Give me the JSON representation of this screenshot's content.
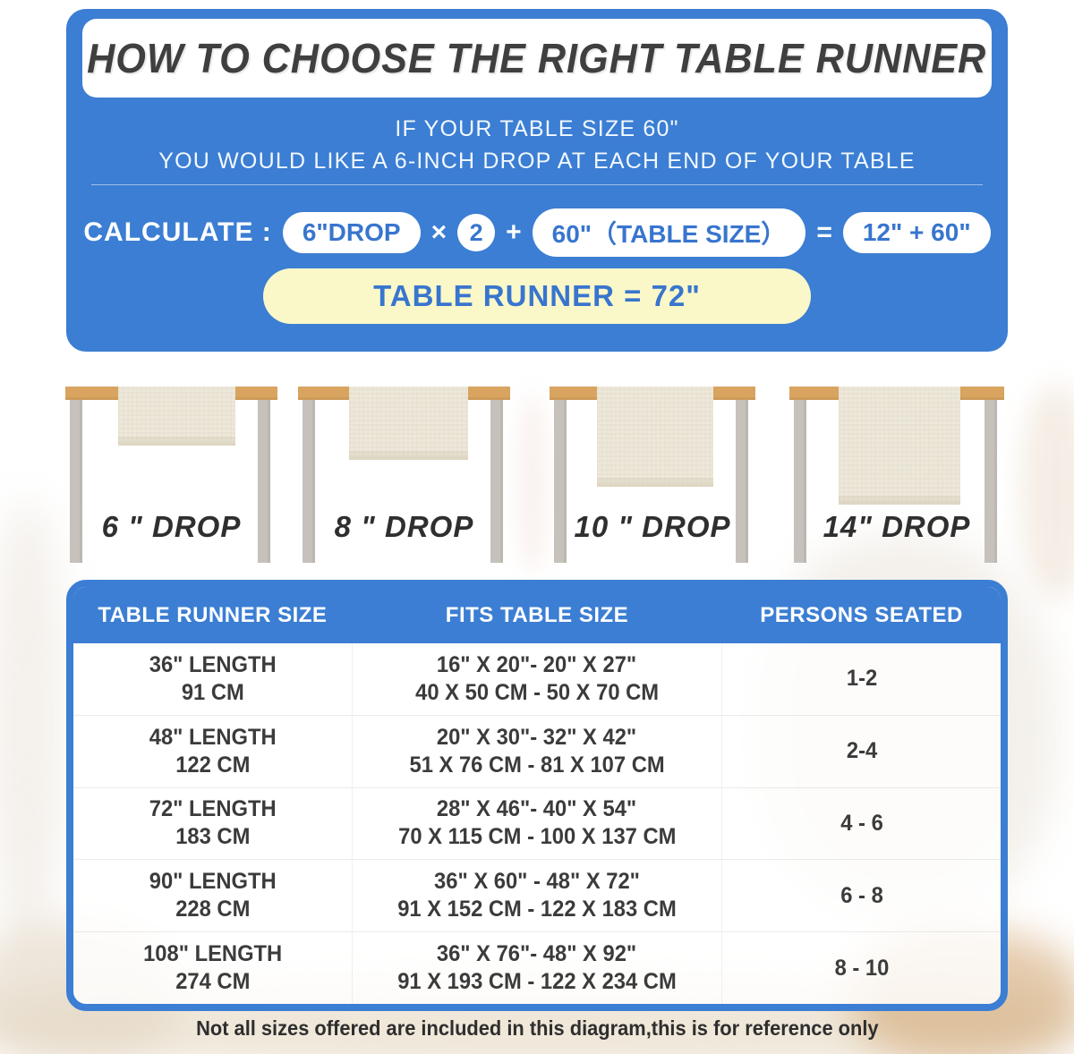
{
  "colors": {
    "panel_blue": "#3B7ED3",
    "accent_blue_text": "#3875CE",
    "banner_yellow": "#FAF8C9",
    "wood_tan": "#D9A45F",
    "leg_gray": "#C6C1BB",
    "runner_cream": "#EDE8DA",
    "dark_text": "#3B3B3B"
  },
  "header": {
    "title": "HOW TO CHOOSE THE RIGHT TABLE RUNNER",
    "subtitle_line1": "IF YOUR TABLE SIZE 60\"",
    "subtitle_line2": "YOU WOULD LIKE A 6-INCH DROP AT EACH END OF YOUR TABLE",
    "calculate_label": "CALCULATE :",
    "formula": {
      "drop_pill": "6\"DROP",
      "times_sign": "×",
      "multiplier": "2",
      "plus_sign": "+",
      "table_size_pill": "60\"（TABLE SIZE）",
      "equals_sign": "=",
      "sum_pill": "12\" + 60\""
    },
    "result_banner": "TABLE RUNNER = 72\""
  },
  "drop_figures": [
    {
      "label": "6 \" DROP"
    },
    {
      "label": "8 \" DROP"
    },
    {
      "label": "10 \" DROP"
    },
    {
      "label": "14\" DROP"
    }
  ],
  "size_chart": {
    "columns": [
      "TABLE RUNNER SIZE",
      "FITS TABLE SIZE",
      "PERSONS SEATED"
    ],
    "rows": [
      {
        "runner_in": "36\" LENGTH",
        "runner_cm": "91 CM",
        "fits_in": "16\" X 20\"- 20\" X 27\"",
        "fits_cm": "40 X 50 CM - 50 X 70 CM",
        "persons": "1-2"
      },
      {
        "runner_in": "48\" LENGTH",
        "runner_cm": "122 CM",
        "fits_in": "20\" X 30\"- 32\" X 42\"",
        "fits_cm": "51 X 76 CM - 81 X 107 CM",
        "persons": "2-4"
      },
      {
        "runner_in": "72\" LENGTH",
        "runner_cm": "183 CM",
        "fits_in": "28\" X 46\"- 40\" X 54\"",
        "fits_cm": "70 X 115 CM - 100 X 137 CM",
        "persons": "4 - 6"
      },
      {
        "runner_in": "90\" LENGTH",
        "runner_cm": "228 CM",
        "fits_in": "36\" X 60\" - 48\" X 72\"",
        "fits_cm": "91 X 152 CM - 122 X 183 CM",
        "persons": "6 - 8"
      },
      {
        "runner_in": "108\" LENGTH",
        "runner_cm": "274 CM",
        "fits_in": "36\" X 76\"- 48\" X 92\"",
        "fits_cm": "91 X 193 CM - 122 X 234 CM",
        "persons": "8 - 10"
      }
    ]
  },
  "footer": {
    "note": "Not all sizes offered are included in this diagram,this is for reference only"
  }
}
